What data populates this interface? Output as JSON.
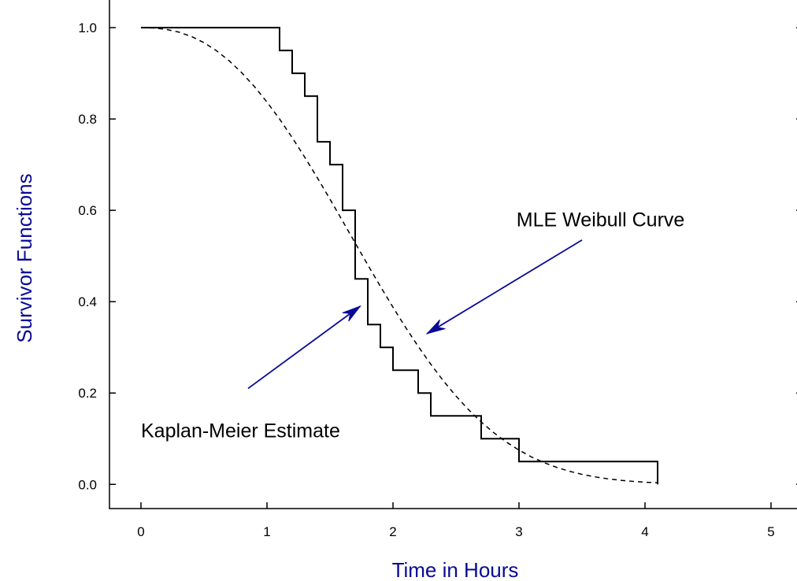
{
  "chart_data": {
    "type": "line",
    "title": "",
    "xlabel": "Time in Hours",
    "ylabel": "Survivor Functions",
    "xlim": [
      -0.25,
      5.25
    ],
    "ylim": [
      -0.053,
      1.064
    ],
    "x_ticks": [
      "0",
      "1",
      "2",
      "3",
      "4",
      "5"
    ],
    "y_ticks": [
      "0.0",
      "0.2",
      "0.4",
      "0.6",
      "0.8",
      "1.0"
    ],
    "grid": false,
    "label_color": "#0a0a96",
    "arrow_color": "#0a0a96",
    "series": [
      {
        "name": "Kaplan-Meier Estimate",
        "style": "step",
        "points": [
          [
            0,
            1.0
          ],
          [
            1.1,
            1.0
          ],
          [
            1.1,
            0.95
          ],
          [
            1.2,
            0.95
          ],
          [
            1.2,
            0.9
          ],
          [
            1.3,
            0.9
          ],
          [
            1.3,
            0.85
          ],
          [
            1.4,
            0.85
          ],
          [
            1.4,
            0.75
          ],
          [
            1.5,
            0.75
          ],
          [
            1.5,
            0.7
          ],
          [
            1.6,
            0.7
          ],
          [
            1.6,
            0.6
          ],
          [
            1.7,
            0.6
          ],
          [
            1.7,
            0.45
          ],
          [
            1.8,
            0.45
          ],
          [
            1.8,
            0.35
          ],
          [
            1.9,
            0.35
          ],
          [
            1.9,
            0.3
          ],
          [
            2.0,
            0.3
          ],
          [
            2.0,
            0.25
          ],
          [
            2.2,
            0.25
          ],
          [
            2.2,
            0.2
          ],
          [
            2.3,
            0.2
          ],
          [
            2.3,
            0.15
          ],
          [
            2.7,
            0.15
          ],
          [
            2.7,
            0.1
          ],
          [
            3.0,
            0.1
          ],
          [
            3.0,
            0.05
          ],
          [
            4.1,
            0.05
          ],
          [
            4.1,
            0.0
          ]
        ]
      },
      {
        "name": "MLE Weibull Curve",
        "style": "dashed",
        "points": [
          [
            0.0,
            1.0
          ],
          [
            0.1,
            0.9993
          ],
          [
            0.2,
            0.9963
          ],
          [
            0.3,
            0.9903
          ],
          [
            0.4,
            0.9807
          ],
          [
            0.5,
            0.9671
          ],
          [
            0.6,
            0.9493
          ],
          [
            0.7,
            0.9274
          ],
          [
            0.8,
            0.9012
          ],
          [
            0.9,
            0.8711
          ],
          [
            1.0,
            0.8371
          ],
          [
            1.1,
            0.7999
          ],
          [
            1.2,
            0.7593
          ],
          [
            1.3,
            0.7162
          ],
          [
            1.4,
            0.6711
          ],
          [
            1.5,
            0.6244
          ],
          [
            1.6,
            0.5766
          ],
          [
            1.7,
            0.5286
          ],
          [
            1.8,
            0.4806
          ],
          [
            1.9,
            0.4335
          ],
          [
            2.0,
            0.3878
          ],
          [
            2.1,
            0.3438
          ],
          [
            2.2,
            0.3021
          ],
          [
            2.3,
            0.2629
          ],
          [
            2.4,
            0.2266
          ],
          [
            2.5,
            0.1934
          ],
          [
            2.6,
            0.1634
          ],
          [
            2.7,
            0.1366
          ],
          [
            2.8,
            0.1131
          ],
          [
            2.9,
            0.0926
          ],
          [
            3.0,
            0.0749
          ],
          [
            3.1,
            0.0599
          ],
          [
            3.2,
            0.0474
          ],
          [
            3.3,
            0.0371
          ],
          [
            3.4,
            0.0287
          ],
          [
            3.5,
            0.0219
          ],
          [
            3.6,
            0.0166
          ],
          [
            3.7,
            0.0124
          ],
          [
            3.8,
            0.0091
          ],
          [
            3.9,
            0.0066
          ],
          [
            4.0,
            0.0048
          ],
          [
            4.1,
            0.0034
          ]
        ]
      }
    ],
    "annotations": [
      {
        "text": "MLE Weibull Curve",
        "x": 2.98,
        "y": 0.565,
        "arrow_from": [
          3.5,
          0.535
        ],
        "arrow_to": [
          2.27,
          0.33
        ]
      },
      {
        "text": "Kaplan-Meier Estimate",
        "x": 0.0,
        "y": 0.103,
        "arrow_from": [
          0.85,
          0.21
        ],
        "arrow_to": [
          1.74,
          0.39
        ]
      }
    ]
  }
}
